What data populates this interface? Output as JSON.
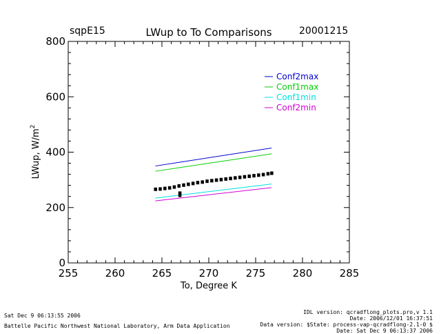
{
  "header": {
    "site": "sqpE15",
    "date": "20001215"
  },
  "footer": {
    "left_line1": "Sat Dec  9 06:13:55 2006",
    "left_line2": "Battelle Pacific Northwest National Laboratory, Arm Data Application",
    "right_line1": "IDL version: qcradflong_plots.pro,v 1.1",
    "right_line2": "Date: 2006/12/01 16:37:51",
    "right_line3": "Data version: $State: process-vap-qcradflong-2.1-0 $",
    "right_line4": "Date: Sat Dec  9 06:13:37 2006"
  },
  "chart_data": {
    "type": "line",
    "title": "LWup to To Comparisons",
    "xlabel": "To, Degree K",
    "ylabel": "LWup, W/m",
    "ylabel_superscript": "2",
    "xlim": [
      255,
      285
    ],
    "ylim": [
      0,
      800
    ],
    "xticks": [
      255,
      260,
      265,
      270,
      275,
      280,
      285
    ],
    "yticks": [
      0,
      200,
      400,
      600,
      800
    ],
    "x_minor_step": 1,
    "y_minor_step": 40,
    "grid": false,
    "legend_position": "top-right",
    "series": [
      {
        "name": "Conf2max",
        "color": "#0000d0",
        "style": "line",
        "x": [
          264.3,
          276.7
        ],
        "y": [
          350,
          415
        ]
      },
      {
        "name": "Conf1max",
        "color": "#00d000",
        "style": "line",
        "x": [
          264.3,
          276.7
        ],
        "y": [
          331,
          394
        ]
      },
      {
        "name": "Conf1min",
        "color": "#00e0e0",
        "style": "line",
        "x": [
          264.3,
          276.7
        ],
        "y": [
          234,
          285
        ]
      },
      {
        "name": "Conf2min",
        "color": "#d000d0",
        "style": "line",
        "x": [
          264.3,
          276.7
        ],
        "y": [
          224,
          272
        ]
      },
      {
        "style": "points",
        "color": "#000000",
        "x": [
          264.3,
          264.8,
          265.3,
          265.8,
          266.3,
          266.8,
          267.3,
          267.8,
          268.3,
          268.8,
          269.3,
          269.8,
          270.3,
          270.8,
          271.3,
          271.8,
          272.3,
          272.8,
          273.3,
          273.8,
          274.3,
          274.8,
          275.3,
          275.8,
          276.3,
          276.7,
          266.9,
          266.9
        ],
        "y": [
          266,
          267,
          269,
          271,
          274,
          278,
          281,
          284,
          287,
          290,
          292,
          295,
          297,
          299,
          301,
          303,
          305,
          307,
          309,
          311,
          313,
          315,
          317,
          319,
          322,
          324,
          252,
          244
        ]
      }
    ]
  }
}
